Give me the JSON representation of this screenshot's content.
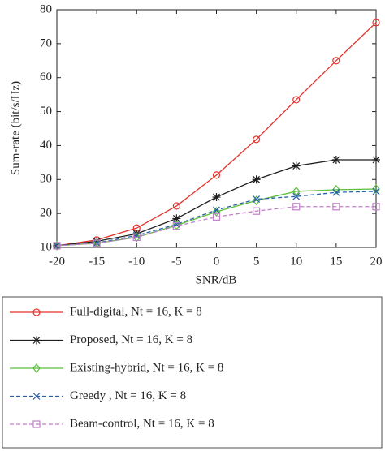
{
  "chart_data": {
    "type": "line",
    "xlabel": "SNR/dB",
    "ylabel": "Sum-rate (bit/s/Hz)",
    "x": [
      -20,
      -15,
      -10,
      -5,
      0,
      5,
      10,
      15,
      20
    ],
    "xlim": [
      -20,
      20
    ],
    "xticks": [
      -20,
      -15,
      -10,
      -5,
      0,
      5,
      10,
      15,
      20
    ],
    "ylim": [
      10,
      80
    ],
    "yticks": [
      10,
      20,
      30,
      40,
      50,
      60,
      70,
      80
    ],
    "grid": false,
    "legend": "below",
    "series": [
      {
        "name": "Full-digital, Nt = 16, K = 8",
        "color": "#e3322b",
        "marker": "circle",
        "dash": false,
        "values": [
          10.5,
          12.2,
          15.7,
          22.2,
          31.3,
          41.8,
          53.5,
          65,
          76.2
        ]
      },
      {
        "name": "Proposed, Nt = 16, K = 8",
        "color": "#1e1e1e",
        "marker": "star",
        "dash": false,
        "values": [
          10.5,
          11.8,
          14,
          18.5,
          24.8,
          30,
          34,
          35.8,
          35.8
        ]
      },
      {
        "name": "Existing-hybrid, Nt = 16, K = 8",
        "color": "#5cbf3a",
        "marker": "diamond",
        "dash": false,
        "values": [
          10.5,
          11.2,
          13,
          16.5,
          20.5,
          23.8,
          26.5,
          27,
          27.2
        ]
      },
      {
        "name": "Greedy , Nt = 16, K = 8",
        "color": "#2a5fa8",
        "marker": "x",
        "dash": true,
        "values": [
          10.5,
          11.3,
          13.5,
          16.8,
          21,
          24.2,
          25,
          26.2,
          26.5
        ]
      },
      {
        "name": "Beam-control, Nt = 16, K = 8",
        "color": "#c27fc9",
        "marker": "square",
        "dash": true,
        "values": [
          10.5,
          11.2,
          13,
          16.3,
          19,
          20.7,
          22,
          22,
          22
        ]
      }
    ]
  }
}
